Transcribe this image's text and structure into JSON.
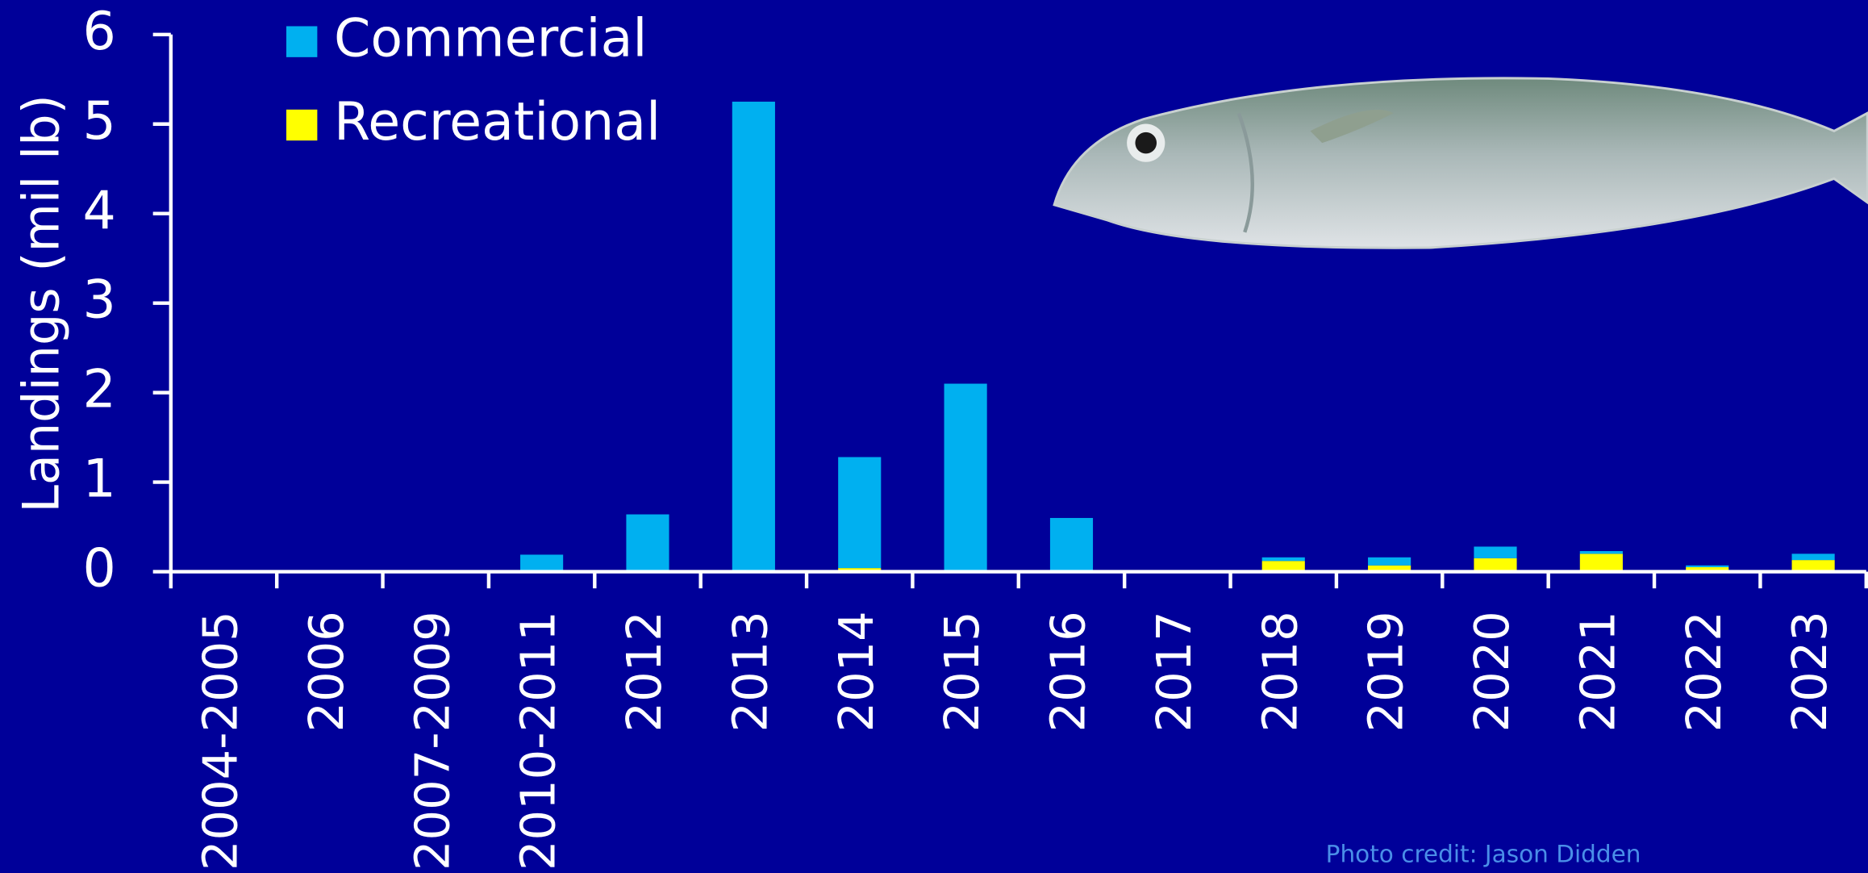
{
  "chart_data": {
    "type": "bar",
    "stacked": true,
    "y_label": "Landings (mil lb)",
    "categories": [
      "2004-2005",
      "2006",
      "2007-2009",
      "2010-2011",
      "2012",
      "2013",
      "2014",
      "2015",
      "2016",
      "2017",
      "2018",
      "2019",
      "2020",
      "2021",
      "2022",
      "2023"
    ],
    "series": [
      {
        "name": "Commercial",
        "color": "#00b0f0",
        "values": [
          0,
          0,
          0,
          0.19,
          0.64,
          5.25,
          1.24,
          2.1,
          0.6,
          0,
          0.04,
          0.09,
          0.13,
          0.03,
          0.02,
          0.07
        ]
      },
      {
        "name": "Recreational",
        "color": "#ffff00",
        "values": [
          0,
          0,
          0,
          0,
          0,
          0,
          0.04,
          0,
          0,
          0,
          0.12,
          0.07,
          0.15,
          0.2,
          0.05,
          0.13
        ]
      }
    ],
    "ylim": [
      0,
      6
    ],
    "yticks": [
      0,
      1,
      2,
      3,
      4,
      5,
      6
    ],
    "legend": "top-left",
    "annotation": "Photo credit: Jason Didden"
  }
}
